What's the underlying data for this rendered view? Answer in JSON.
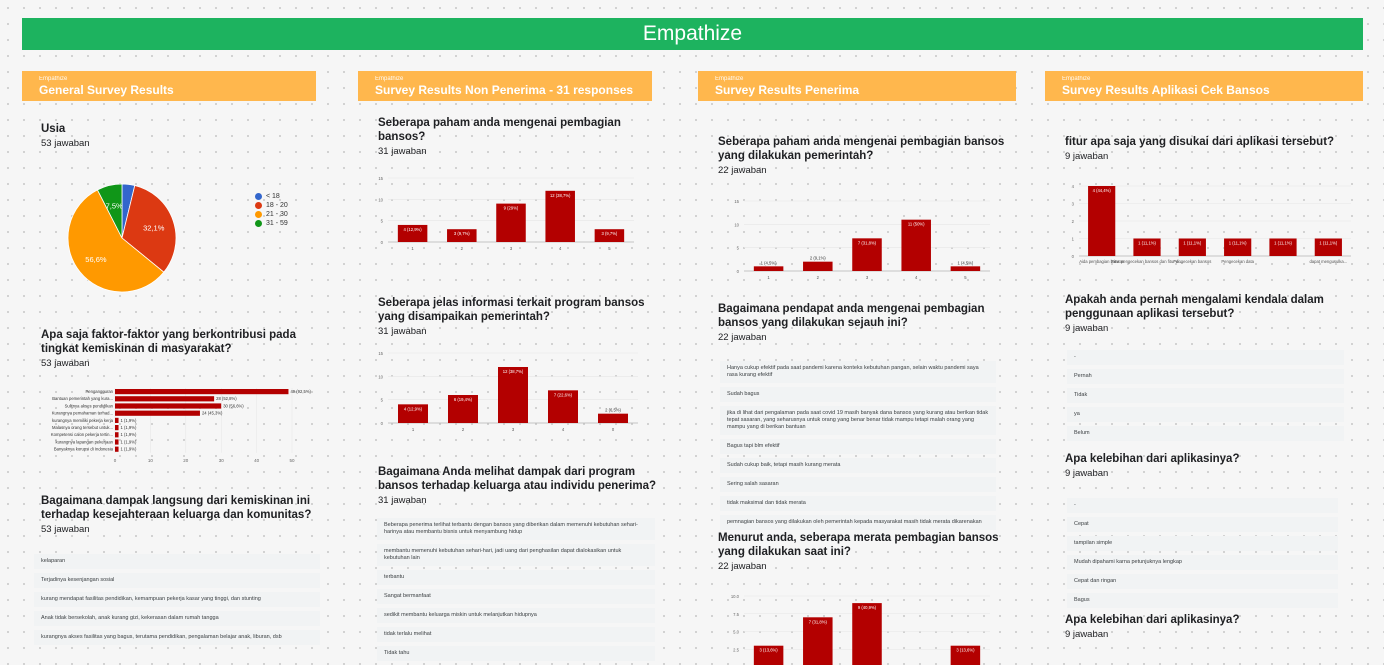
{
  "banner": "Empathize",
  "columns": [
    {
      "tag": "Empathize",
      "title": "General Survey Results"
    },
    {
      "tag": "Empathize",
      "title": "Survey Results Non Penerima - 31 responses"
    },
    {
      "tag": "Empathize",
      "title": "Survey Results Penerima"
    },
    {
      "tag": "Empathize",
      "title": "Survey Results Aplikasi Cek Bansos"
    }
  ],
  "col1": {
    "q1": {
      "title": "Usia",
      "count": "53 jawaban"
    },
    "q2": {
      "title": "Apa saja faktor-faktor yang berkontribusi pada tingkat kemiskinan di masyarakat?",
      "count": "53 jawaban"
    },
    "q3": {
      "title": "Bagaimana dampak langsung dari kemiskinan ini terhadap kesejahteraan keluarga dan komunitas?",
      "count": "53 jawaban",
      "responses": [
        "kelaparan",
        "Terjadinya kesenjangan sosial",
        "kurang mendapat fasilitas pendidikan, kemampuan pekerja kasar yang tinggi, dan stunting",
        "Anak tidak bersekolah, anak kurang gizi, kekerasan dalam rumah tangga",
        "kurangnya akses fasilitas yang bagus, terutama pendidikan, pengalaman belajar anak, liburan, dsb"
      ]
    }
  },
  "col2": {
    "q1": {
      "title": "Seberapa paham anda mengenai pembagian bansos?",
      "count": "31 jawaban"
    },
    "q2": {
      "title": "Seberapa jelas informasi terkait program bansos yang disampaikan pemerintah?",
      "count": "31 jawaban"
    },
    "q3": {
      "title": "Bagaimana Anda melihat dampak dari program bansos terhadap keluarga atau individu penerima?",
      "count": "31 jawaban",
      "responses": [
        "Beberapa penerima terlihat terbantu dengan bansos yang diberikan dalam memenuhi kebutuhan sehari-harinya atau membantu bisnis untuk menyambung hidup",
        "membantu memenuhi kebutuhan sehari-hari, jadi uang dari penghasilan dapat dialokasikan untuk kebutuhan lain",
        "terbantu",
        "Sangat bermanfaat",
        "sedikit membantu keluarga miskin untuk melanjutkan hidupnya",
        "tidak terlalu melihat",
        "Tidak tahu"
      ]
    }
  },
  "col3": {
    "q1": {
      "title": "Seberapa paham anda mengenai pembagian bansos yang dilakukan pemerintah?",
      "count": "22 jawaban"
    },
    "q2": {
      "title": "Bagaimana pendapat anda mengenai pembagian bansos yang dilakukan sejauh ini?",
      "count": "22 jawaban",
      "responses": [
        "Hanya cukup efektif pada saat pandemi karena konteks kebutuhan pangan, selain waktu pandemi saya rasa kurang efektif",
        "Sudah bagus",
        "jika di lihat dari pengalaman pada saat covid 19 masih banyak dana bansos yang kurang atau berikan tidak tepat sasaran, yang seharusnya untuk orang yang benar benar tidak mampu tetapi malah orang yang mampu yang di berikan bantuan",
        "Bagus tapi blm efektif",
        "Sudah cukup baik, tetapi masih kurang merata",
        "Sering salah sasaran",
        "tidak maksimal dan tidak merata",
        "pemnagian bansos yang dilakukan oleh pemerintah kepada masyarakat masih tidak merata dikarenakan"
      ]
    },
    "q3": {
      "title": "Menurut anda, seberapa merata pembagian bansos yang dilakukan saat ini?",
      "count": "22 jawaban"
    }
  },
  "col4": {
    "q1": {
      "title": "fitur apa saja yang disukai dari aplikasi tersebut?",
      "count": "9 jawaban"
    },
    "q2": {
      "title": "Apakah anda pernah mengalami kendala dalam penggunaan aplikasi tersebut?",
      "count": "9 jawaban",
      "responses": [
        "-",
        "Pernah",
        "Tidak",
        "ya",
        "Belum"
      ]
    },
    "q3": {
      "title": "Apa kelebihan dari aplikasinya?",
      "count": "9 jawaban",
      "responses": [
        "-",
        "Cepat",
        "tampilan simple",
        "Mudah dipahami karna petunjuknya lengkap",
        "Cepat dan ringan",
        "Bagus"
      ]
    },
    "q4": {
      "title": "Apa kelebihan dari aplikasinya?",
      "count": "9 jawaban"
    }
  },
  "chart_data": [
    {
      "type": "pie",
      "id": "usia",
      "legend_placement": "right",
      "series": [
        {
          "name": "< 18",
          "value": 3.8,
          "color": "#3366cc"
        },
        {
          "name": "18 - 20",
          "value": 32.1,
          "color": "#dc3912"
        },
        {
          "name": "21 - 30",
          "value": 56.6,
          "color": "#ff9900"
        },
        {
          "name": "31 - 59",
          "value": 7.5,
          "color": "#109618"
        }
      ],
      "data_labels": [
        "56,6%",
        "32,1%",
        "7,5%"
      ]
    },
    {
      "type": "bar",
      "id": "faktor",
      "orientation": "horizontal",
      "xlim": [
        0,
        50
      ],
      "xticks": [
        0,
        10,
        20,
        30,
        40,
        50
      ],
      "categories": [
        "Pengangguran",
        "Bantuan pemerintah yang kura...",
        "Sulitnya akses pendidikan",
        "Kurangnya pemahaman terhad...",
        "kurangnya memiliki pekerja kerja",
        "Malasnya orang tersebut untuk...",
        "Kompetensi calon pekerja tertin...",
        "kurangnya lapangan pekerjaan",
        "Banyaknya korupsi di Indonesia"
      ],
      "values": [
        49,
        28,
        30,
        24,
        1,
        1,
        1,
        1,
        1
      ],
      "labels": [
        "49 (92,5%)",
        "28 (52,8%)",
        "30 (56,6%)",
        "24 (45,3%)",
        "1 (1,9%)",
        "1 (1,9%)",
        "1 (1,9%)",
        "1 (1,9%)",
        "1 (1,9%)"
      ],
      "color": "#b30000"
    },
    {
      "type": "bar",
      "id": "np_paham",
      "categories": [
        "1",
        "2",
        "3",
        "4",
        "5"
      ],
      "values": [
        4,
        3,
        9,
        12,
        3
      ],
      "labels": [
        "4 (12,9%)",
        "3 (9,7%)",
        "9 (29%)",
        "12 (38,7%)",
        "3 (9,7%)"
      ],
      "ylim": [
        0,
        15
      ],
      "yticks": [
        0,
        5,
        10,
        15
      ],
      "color": "#b30000"
    },
    {
      "type": "bar",
      "id": "np_jelas",
      "categories": [
        "1",
        "2",
        "3",
        "4",
        "0"
      ],
      "values": [
        4,
        6,
        12,
        7,
        2
      ],
      "labels": [
        "4 (12,9%)",
        "6 (19,4%)",
        "12 (38,7%)",
        "7 (22,6%)",
        "2 (6,5%)"
      ],
      "ylim": [
        0,
        15
      ],
      "yticks": [
        0,
        5,
        10,
        15
      ],
      "color": "#b30000"
    },
    {
      "type": "bar",
      "id": "p_paham",
      "categories": [
        "1",
        "2",
        "3",
        "4",
        "5"
      ],
      "values": [
        1,
        2,
        7,
        11,
        1
      ],
      "labels": [
        "1 (4,5%)",
        "2 (9,1%)",
        "7 (31,8%)",
        "11 (50%)",
        "1 (4,5%)"
      ],
      "ylim": [
        0,
        15
      ],
      "yticks": [
        0,
        5,
        10,
        15
      ],
      "color": "#b30000"
    },
    {
      "type": "bar",
      "id": "p_merata",
      "categories": [
        "1",
        "2",
        "3",
        "4",
        "5"
      ],
      "values": [
        3,
        7,
        9,
        0,
        3
      ],
      "labels": [
        "3 (13,6%)",
        "7 (31,8%)",
        "9 (40,9%)",
        "",
        "3 (13,6%)"
      ],
      "ylim": [
        0,
        10
      ],
      "yticks": [
        "2.5",
        "5.0",
        "7.5",
        "10.0"
      ],
      "color": "#b30000"
    },
    {
      "type": "bar",
      "id": "app_fitur",
      "categories": [
        "Aida pembagian bansos",
        "Fitur pengecekan bansos dan fitur di...",
        "Pengecekan bansos",
        "Pengecekan data",
        "",
        "dapat mengusulka..."
      ],
      "values": [
        4,
        1,
        1,
        1,
        1,
        1
      ],
      "labels": [
        "4 (44,4%)",
        "1 (11,1%)",
        "1 (11,1%)",
        "1 (11,1%)",
        "1 (11,1%)",
        "1 (11,1%)"
      ],
      "ylim": [
        0,
        4
      ],
      "yticks": [
        0,
        1,
        2,
        3,
        4
      ],
      "color": "#b30000"
    }
  ]
}
